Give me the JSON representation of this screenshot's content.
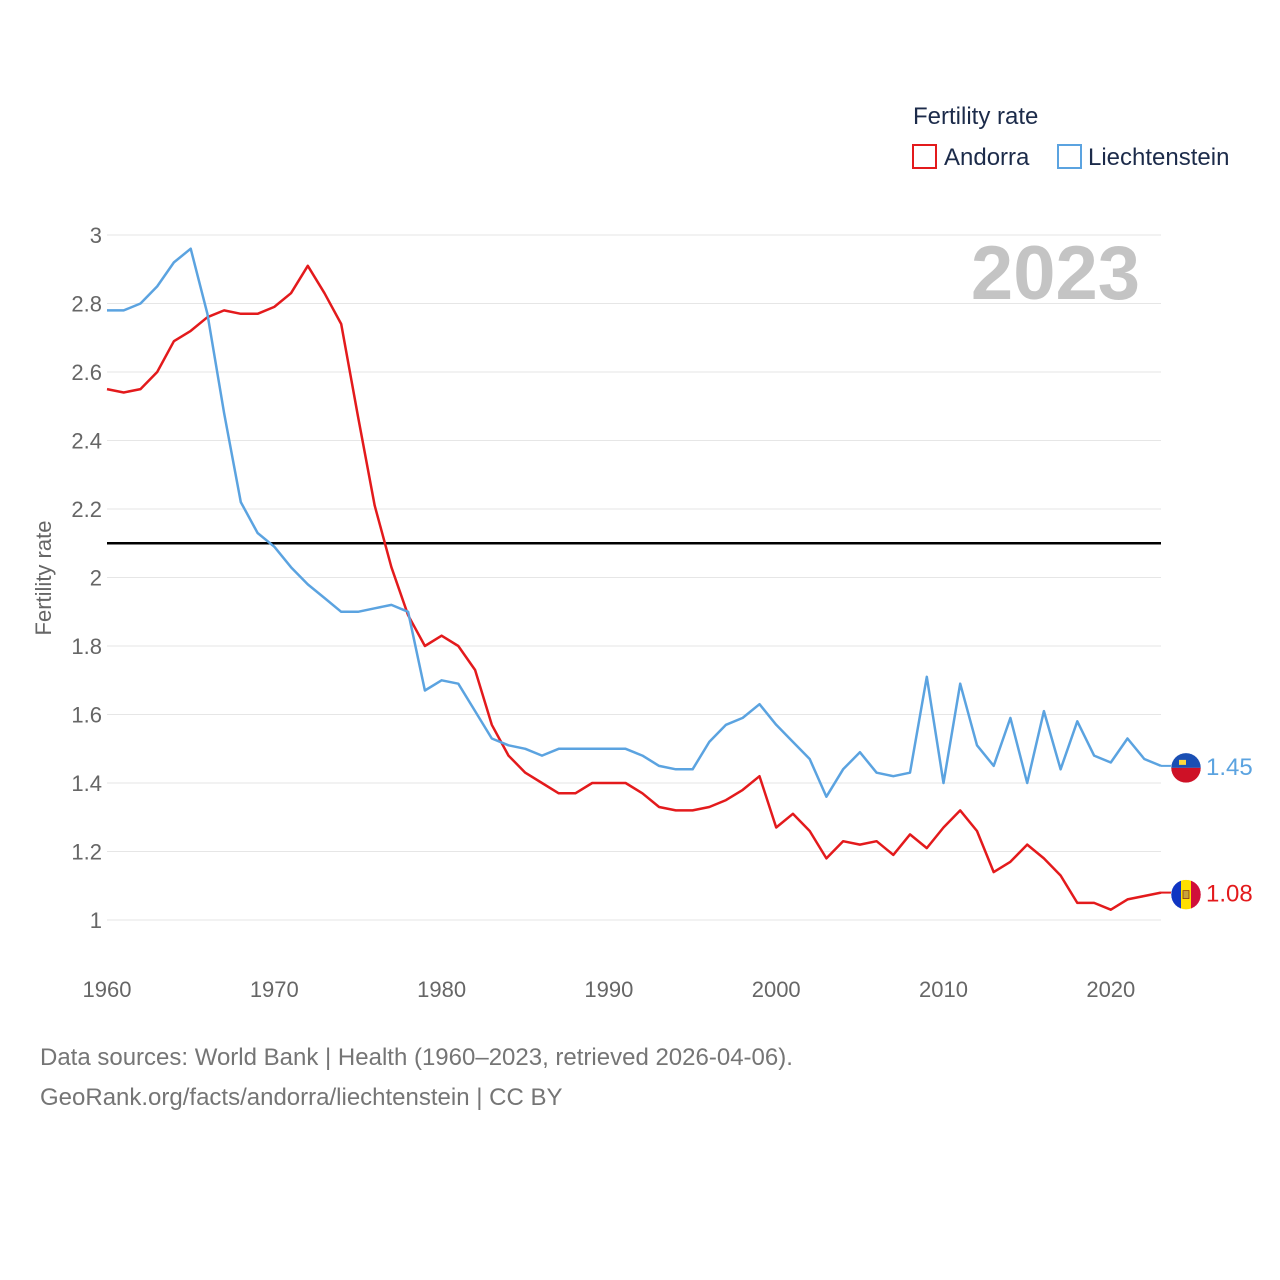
{
  "chart_data": {
    "type": "line",
    "title": "Fertility rate",
    "ylabel": "Fertility rate",
    "xlabel": "",
    "year_display": "2023",
    "xlim": [
      1960,
      2023
    ],
    "ylim": [
      0.9,
      3.05
    ],
    "x_ticks": [
      1960,
      1970,
      1980,
      1990,
      2000,
      2010,
      2020
    ],
    "y_ticks": [
      {
        "value": 1,
        "label": "1"
      },
      {
        "value": 1.2,
        "label": "1.2"
      },
      {
        "value": 1.4,
        "label": "1.4"
      },
      {
        "value": 1.6,
        "label": "1.6"
      },
      {
        "value": 1.8,
        "label": "1.8"
      },
      {
        "value": 2,
        "label": "2"
      },
      {
        "value": 2.2,
        "label": "2.2"
      },
      {
        "value": 2.4,
        "label": "2.4"
      },
      {
        "value": 2.6,
        "label": "2.6"
      },
      {
        "value": 2.8,
        "label": "2.8"
      },
      {
        "value": 3,
        "label": "3"
      }
    ],
    "reference_line": 2.1,
    "legend_position": "top-right",
    "series": [
      {
        "name": "Andorra",
        "color": "#e31a1c",
        "end_label": "1.08",
        "flag": "andorra-flag",
        "values": [
          2.55,
          2.54,
          2.55,
          2.6,
          2.69,
          2.72,
          2.76,
          2.78,
          2.77,
          2.77,
          2.79,
          2.83,
          2.91,
          2.83,
          2.74,
          2.47,
          2.21,
          2.03,
          1.89,
          1.8,
          1.83,
          1.8,
          1.73,
          1.57,
          1.48,
          1.43,
          1.4,
          1.37,
          1.37,
          1.4,
          1.4,
          1.4,
          1.37,
          1.33,
          1.32,
          1.32,
          1.33,
          1.35,
          1.38,
          1.42,
          1.27,
          1.31,
          1.26,
          1.18,
          1.23,
          1.22,
          1.23,
          1.19,
          1.25,
          1.21,
          1.27,
          1.32,
          1.26,
          1.14,
          1.17,
          1.22,
          1.18,
          1.13,
          1.05,
          1.05,
          1.03,
          1.06,
          1.07,
          1.08
        ]
      },
      {
        "name": "Liechtenstein",
        "color": "#5ba3e0",
        "end_label": "1.45",
        "flag": "liechtenstein-flag",
        "values": [
          2.78,
          2.78,
          2.8,
          2.85,
          2.92,
          2.96,
          2.77,
          2.48,
          2.22,
          2.13,
          2.09,
          2.03,
          1.98,
          1.94,
          1.9,
          1.9,
          1.91,
          1.92,
          1.9,
          1.67,
          1.7,
          1.69,
          1.61,
          1.53,
          1.51,
          1.5,
          1.48,
          1.5,
          1.5,
          1.5,
          1.5,
          1.5,
          1.48,
          1.45,
          1.44,
          1.44,
          1.52,
          1.57,
          1.59,
          1.63,
          1.57,
          1.52,
          1.47,
          1.36,
          1.44,
          1.49,
          1.43,
          1.42,
          1.43,
          1.71,
          1.4,
          1.69,
          1.51,
          1.45,
          1.59,
          1.4,
          1.61,
          1.44,
          1.58,
          1.48,
          1.46,
          1.53,
          1.47,
          1.45
        ]
      }
    ]
  },
  "footer": {
    "line1": "Data sources: World Bank | Health (1960–2023, retrieved 2026-04-06).",
    "line2": "GeoRank.org/facts/andorra/liechtenstein | CC BY"
  }
}
